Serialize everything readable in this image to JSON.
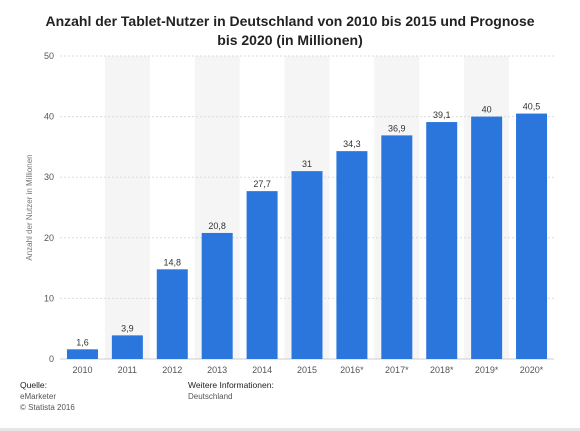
{
  "title_line1": "Anzahl der Tablet-Nutzer in Deutschland von 2010 bis 2015 und Prognose",
  "title_line2": "bis 2020 (in Millionen)",
  "chart_data": {
    "type": "bar",
    "categories": [
      "2010",
      "2011",
      "2012",
      "2013",
      "2014",
      "2015",
      "2016*",
      "2017*",
      "2018*",
      "2019*",
      "2020*"
    ],
    "values": [
      1.6,
      3.9,
      14.8,
      20.8,
      27.7,
      31,
      34.3,
      36.9,
      39.1,
      40,
      40.5
    ],
    "value_labels": [
      "1,6",
      "3,9",
      "14,8",
      "20,8",
      "27,7",
      "31",
      "34,3",
      "36,9",
      "39,1",
      "40",
      "40,5"
    ],
    "ylabel": "Anzahl der Nutzer in Millionen",
    "ylim": [
      0,
      50
    ],
    "yticks": [
      0,
      10,
      20,
      30,
      40,
      50
    ],
    "grid": true,
    "bar_color": "#2a76dd"
  },
  "footer": {
    "source_heading": "Quelle:",
    "source_name": "eMarketer",
    "copyright": "© Statista 2016",
    "info_heading": "Weitere Informationen:",
    "info_value": "Deutschland"
  }
}
